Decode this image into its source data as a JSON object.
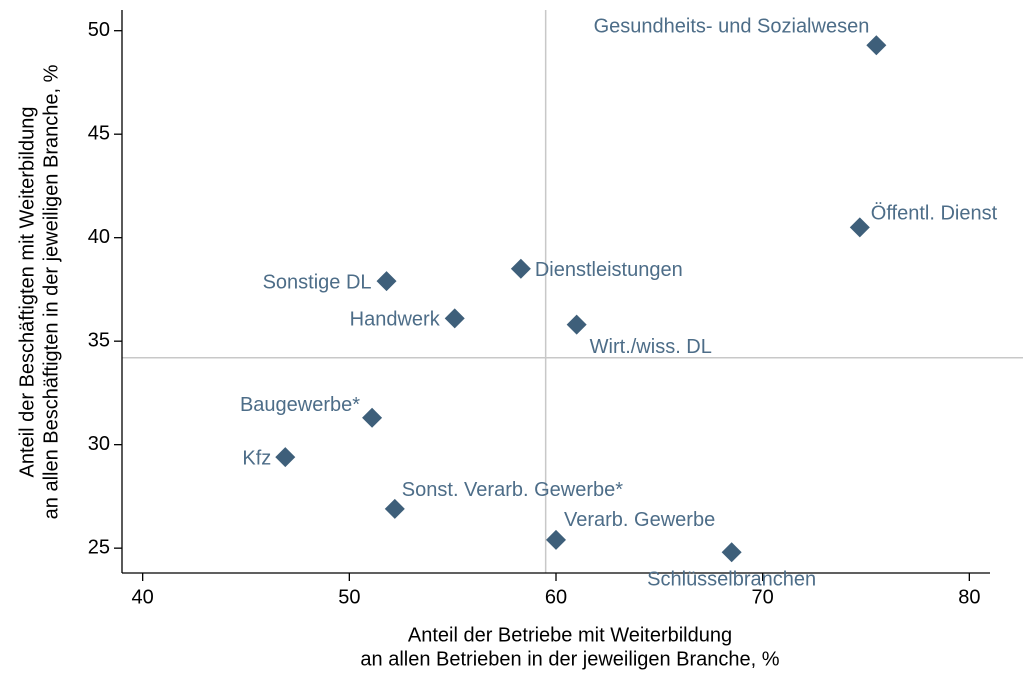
{
  "chart_data": {
    "type": "scatter",
    "xlabel": [
      "Anteil der Betriebe mit Weiterbildung",
      "an allen Betrieben in der jeweiligen Branche, %"
    ],
    "ylabel": [
      "Anteil der Beschäftigten mit Weiterbildung",
      "an allen Beschäftigten in der jeweiligen Branche, %"
    ],
    "labels": [
      "Gesundheits- und Sozialwesen",
      "Öffentl. Dienst",
      "Dienstleistungen",
      "Sonstige DL",
      "Handwerk",
      "Wirt./wiss. DL",
      "Baugewerbe*",
      "Kfz",
      "Sonst. Verarb. Gewerbe*",
      "Verarb. Gewerbe",
      "Schlüsselbranchen"
    ],
    "x": [
      75.5,
      74.7,
      58.3,
      51.8,
      55.1,
      61.0,
      51.1,
      46.9,
      52.2,
      60.0,
      68.5
    ],
    "values": [
      49.3,
      40.5,
      38.5,
      37.9,
      36.1,
      35.8,
      31.3,
      29.4,
      26.9,
      25.4,
      24.8
    ],
    "color": "#3e5f7a",
    "label_color": "#4d6d88",
    "reference_lines": {
      "x": 59.5,
      "y": 34.2
    },
    "reference_color": "#c8c8c8",
    "xlim": [
      39,
      81
    ],
    "xticks": [
      40,
      50,
      60,
      70,
      80
    ],
    "ylim": [
      23.8,
      51
    ],
    "yticks": [
      25,
      30,
      35,
      40,
      45,
      50
    ],
    "grid": false
  }
}
